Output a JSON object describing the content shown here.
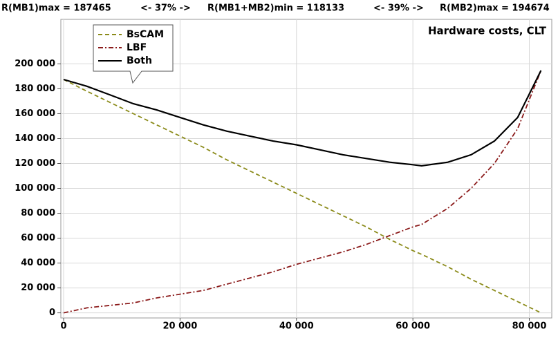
{
  "header": [
    "R(MB1)max = 187465",
    "<- 37% ->",
    "R(MB1+MB2)min = 118133",
    "<- 39% ->",
    "R(MB2)max = 194674"
  ],
  "chart_data": {
    "type": "line",
    "title": "Hardware costs, CLT",
    "x": [
      0,
      4000,
      8000,
      12000,
      16000,
      20000,
      24000,
      28000,
      32000,
      36000,
      40000,
      44000,
      48000,
      52000,
      56000,
      60000,
      61500,
      66000,
      70000,
      74000,
      78000,
      82000
    ],
    "series": [
      {
        "name": "BsCAM",
        "color": "#8b8b1a",
        "dash": "6,4",
        "values": [
          187465,
          178000,
          169000,
          160000,
          151000,
          142000,
          133000,
          123000,
          114000,
          105000,
          96000,
          87000,
          78000,
          69000,
          59000,
          50000,
          47000,
          37000,
          27000,
          18000,
          9000,
          0
        ]
      },
      {
        "name": "LBF",
        "color": "#8b1a1a",
        "dash": "7,3,2,3",
        "values": [
          0,
          4000,
          6000,
          8000,
          12000,
          15000,
          18000,
          23000,
          28000,
          33000,
          39000,
          44000,
          49000,
          55000,
          62000,
          69000,
          71000,
          84000,
          100000,
          120000,
          148000,
          194674
        ]
      },
      {
        "name": "Both",
        "color": "#000000",
        "dash": "none",
        "values": [
          187465,
          182000,
          175000,
          168000,
          163000,
          157000,
          151000,
          146000,
          142000,
          138000,
          135000,
          131000,
          127000,
          124000,
          121000,
          119000,
          118133,
          121000,
          127000,
          138000,
          157000,
          194674
        ]
      }
    ],
    "xlim": [
      0,
      83500
    ],
    "ylim": [
      -3000,
      233000
    ],
    "xticks": [
      0,
      {
        "value": 20000,
        "label": "20 000"
      },
      {
        "value": 40000,
        "label": "40 000"
      },
      {
        "value": 60000,
        "label": "60 000"
      },
      {
        "value": 80000,
        "label": "80 000"
      }
    ],
    "yticks": [
      0,
      {
        "value": 20000,
        "label": "20 000"
      },
      {
        "value": 40000,
        "label": "40 000"
      },
      {
        "value": 60000,
        "label": "60 000"
      },
      {
        "value": 80000,
        "label": "80 000"
      },
      {
        "value": 100000,
        "label": "100 000"
      },
      {
        "value": 120000,
        "label": "120 000"
      },
      {
        "value": 140000,
        "label": "140 000"
      },
      {
        "value": 160000,
        "label": "160 000"
      },
      {
        "value": 180000,
        "label": "180 000"
      },
      {
        "value": 200000,
        "label": "200 000"
      }
    ],
    "grid": true
  }
}
